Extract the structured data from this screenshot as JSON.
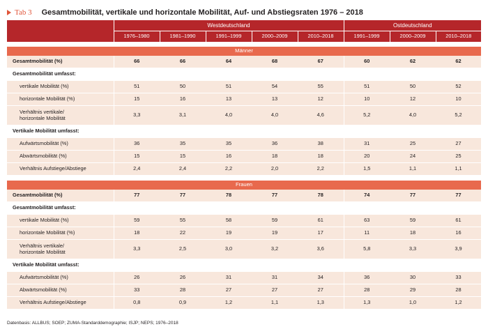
{
  "header": {
    "tab_label": "Tab 3",
    "title": "Gesamtmobilität, vertikale und horizontale Mobilität, Auf- und Abstiegsraten 1976 – 2018"
  },
  "columns": {
    "west_label": "Westdeutschland",
    "east_label": "Ostdeutschland",
    "west_periods": [
      "1976–1980",
      "1981–1990",
      "1991–1999",
      "2000–2009",
      "2010–2018"
    ],
    "east_periods": [
      "1991–1999",
      "2000–2009",
      "2010–2018"
    ]
  },
  "sections": [
    {
      "label": "Männer",
      "rows": [
        {
          "label": "Gesamtmobilität (%)",
          "values": [
            "66",
            "66",
            "64",
            "68",
            "67",
            "60",
            "62",
            "62"
          ],
          "style": "bold"
        },
        {
          "label": "Gesamtmobilität umfasst:",
          "values": [],
          "style": "sub"
        },
        {
          "label": "vertikale Mobilität (%)",
          "values": [
            "51",
            "50",
            "51",
            "54",
            "55",
            "51",
            "50",
            "52"
          ],
          "style": "indent"
        },
        {
          "label": "horizontale Mobilität (%)",
          "values": [
            "15",
            "16",
            "13",
            "13",
            "12",
            "10",
            "12",
            "10"
          ],
          "style": "indent"
        },
        {
          "label": "Verhältnis vertikale/\nhorizontale Mobilität",
          "values": [
            "3,3",
            "3,1",
            "4,0",
            "4,0",
            "4,6",
            "5,2",
            "4,0",
            "5,2"
          ],
          "style": "indent2"
        },
        {
          "label": "Vertikale Mobilität umfasst:",
          "values": [],
          "style": "sub"
        },
        {
          "label": "Aufwärtsmobilität (%)",
          "values": [
            "36",
            "35",
            "35",
            "36",
            "38",
            "31",
            "25",
            "27"
          ],
          "style": "indent"
        },
        {
          "label": "Abwärtsmobilität (%)",
          "values": [
            "15",
            "15",
            "16",
            "18",
            "18",
            "20",
            "24",
            "25"
          ],
          "style": "indent"
        },
        {
          "label": "Verhältnis Aufstiege/Abstiege",
          "values": [
            "2,4",
            "2,4",
            "2,2",
            "2,0",
            "2,2",
            "1,5",
            "1,1",
            "1,1"
          ],
          "style": "indent"
        }
      ]
    },
    {
      "label": "Frauen",
      "rows": [
        {
          "label": "Gesamtmobilität (%)",
          "values": [
            "77",
            "77",
            "78",
            "77",
            "78",
            "74",
            "77",
            "77"
          ],
          "style": "bold"
        },
        {
          "label": "Gesamtmobilität umfasst:",
          "values": [],
          "style": "sub"
        },
        {
          "label": "vertikale Mobilität (%)",
          "values": [
            "59",
            "55",
            "58",
            "59",
            "61",
            "63",
            "59",
            "61"
          ],
          "style": "indent"
        },
        {
          "label": "horizontale Mobilität (%)",
          "values": [
            "18",
            "22",
            "19",
            "19",
            "17",
            "11",
            "18",
            "16"
          ],
          "style": "indent"
        },
        {
          "label": "Verhältnis vertikale/\nhorizontale Mobilität",
          "values": [
            "3,3",
            "2,5",
            "3,0",
            "3,2",
            "3,6",
            "5,8",
            "3,3",
            "3,9"
          ],
          "style": "indent2"
        },
        {
          "label": "Vertikale Mobilität umfasst:",
          "values": [],
          "style": "sub"
        },
        {
          "label": "Aufwärtsmobilität (%)",
          "values": [
            "26",
            "26",
            "31",
            "31",
            "34",
            "36",
            "30",
            "33"
          ],
          "style": "indent"
        },
        {
          "label": "Abwärtsmobilität (%)",
          "values": [
            "33",
            "28",
            "27",
            "27",
            "27",
            "28",
            "29",
            "28"
          ],
          "style": "indent"
        },
        {
          "label": "Verhältnis Aufstiege/Abstiege",
          "values": [
            "0,8",
            "0,9",
            "1,2",
            "1,1",
            "1,3",
            "1,3",
            "1,0",
            "1,2"
          ],
          "style": "indent"
        }
      ]
    }
  ],
  "footer": {
    "source": "Datenbasis: ALLBUS; SOEP; ZUMA-Standarddemographie; ISJP; NEPS; 1976–2018"
  },
  "colors": {
    "header_bg": "#b5262a",
    "section_bg": "#e8694d",
    "row_tint": "#f8e7dc",
    "accent": "#e0553a"
  }
}
